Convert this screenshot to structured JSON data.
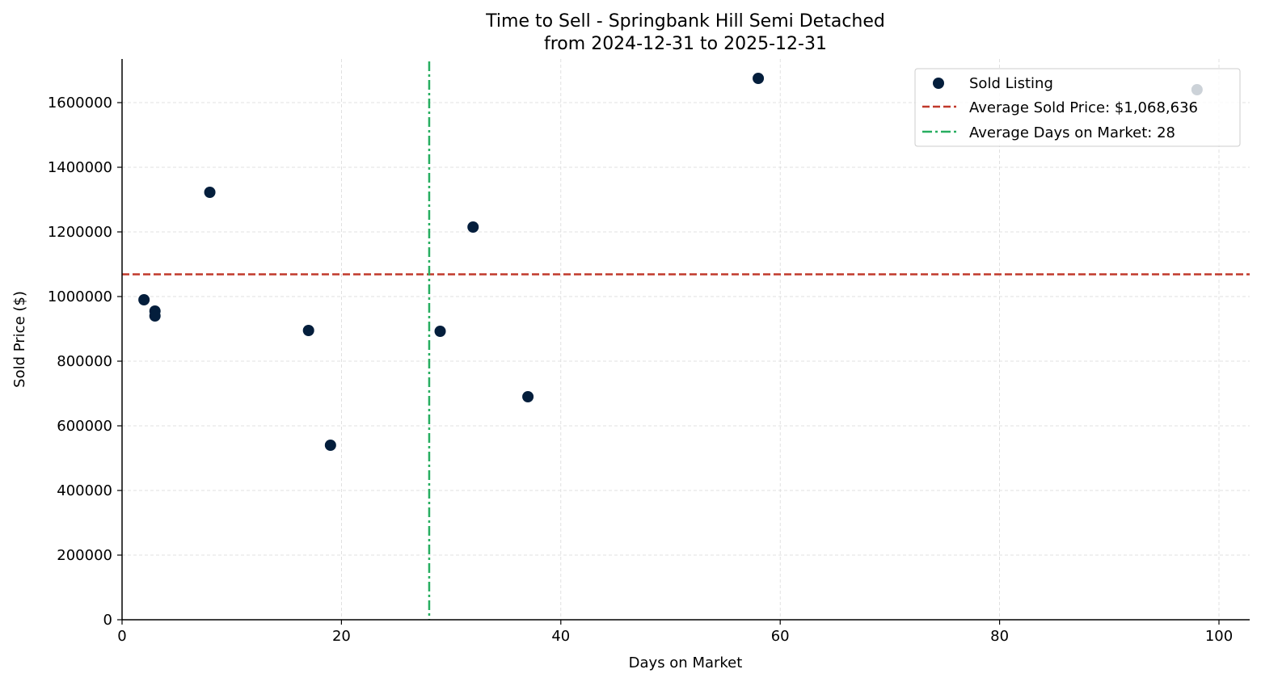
{
  "chart_data": {
    "type": "scatter",
    "title": "Time to Sell - Springbank Hill Semi Detached",
    "subtitle": "from 2024-12-31 to 2025-12-31",
    "xlabel": "Days on Market",
    "ylabel": "Sold Price ($)",
    "xlim": [
      0,
      102.8
    ],
    "ylim": [
      0,
      1735000
    ],
    "x_ticks": [
      0,
      20,
      40,
      60,
      80,
      100
    ],
    "y_ticks": [
      0,
      200000,
      400000,
      600000,
      800000,
      1000000,
      1200000,
      1400000,
      1600000
    ],
    "grid": true,
    "legend_position": "top-right",
    "series": [
      {
        "name": "Sold Listing",
        "color": "#041e3c",
        "points": [
          {
            "x": 2,
            "y": 990000
          },
          {
            "x": 3,
            "y": 955000
          },
          {
            "x": 3,
            "y": 940000
          },
          {
            "x": 8,
            "y": 1322500
          },
          {
            "x": 17,
            "y": 895000
          },
          {
            "x": 19,
            "y": 540000
          },
          {
            "x": 29,
            "y": 892500
          },
          {
            "x": 32,
            "y": 1215000
          },
          {
            "x": 37,
            "y": 690000
          },
          {
            "x": 58,
            "y": 1675000
          },
          {
            "x": 98,
            "y": 1640000
          }
        ]
      }
    ],
    "reference_lines": [
      {
        "name": "Average Sold Price: $1,068,636",
        "orientation": "horizontal",
        "value": 1068636,
        "color": "#c0392b",
        "style": "dashed"
      },
      {
        "name": "Average Days on Market: 28",
        "orientation": "vertical",
        "value": 28,
        "color": "#27ae60",
        "style": "dashdot"
      }
    ]
  }
}
